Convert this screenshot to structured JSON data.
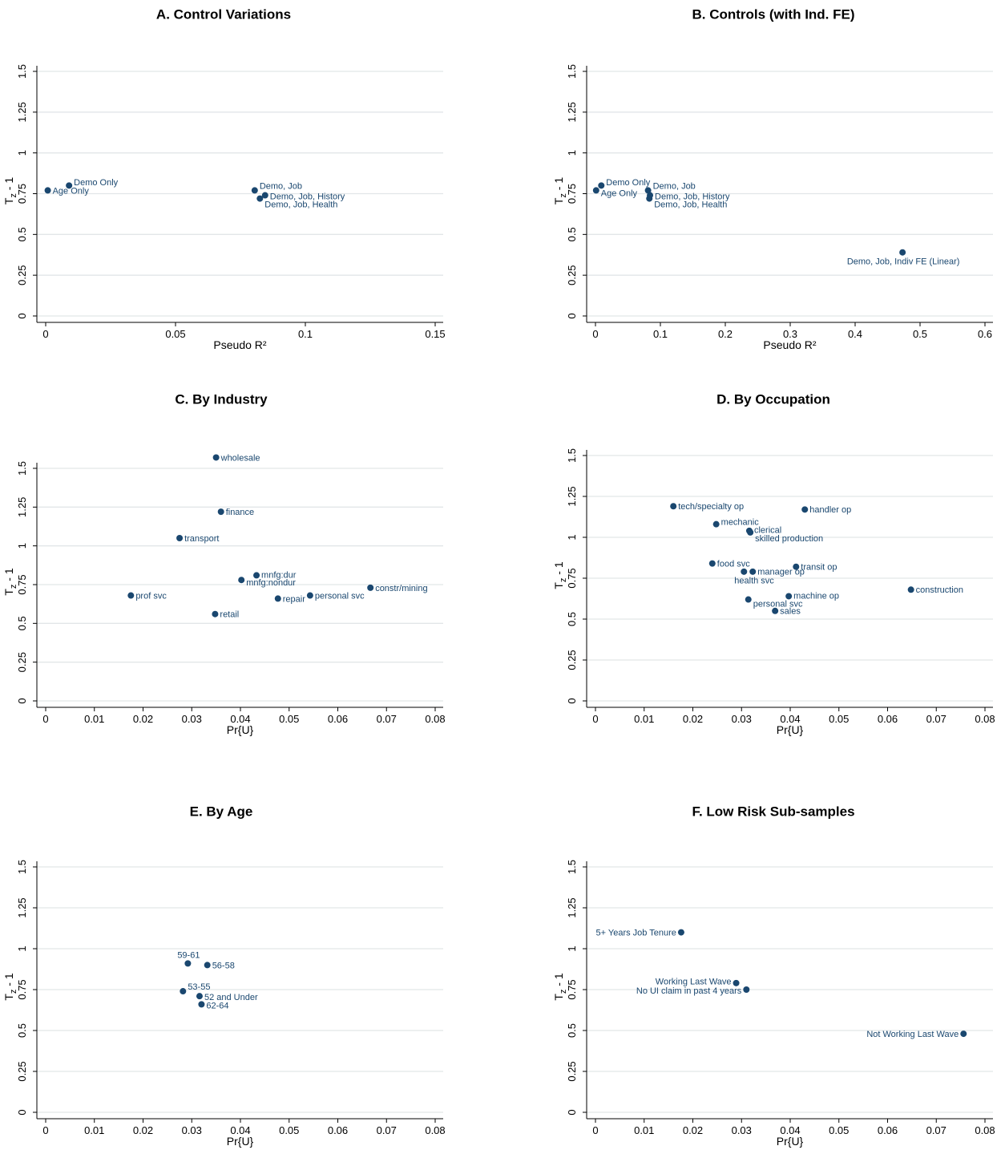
{
  "style": {
    "marker_color": "#1a476f",
    "label_color": "#1a476f",
    "grid_color": "#e2e6e8"
  },
  "chart_data": [
    {
      "type": "scatter",
      "title": "A. Control Variations",
      "xlabel": "Pseudo R²",
      "ylabel": "T_z - 1",
      "xlim": [
        0,
        0.15
      ],
      "ylim": [
        0,
        1.5
      ],
      "xticks": [
        "0",
        "0.05",
        "0.1",
        "0.15"
      ],
      "xtick_values": [
        0,
        0.05,
        0.1,
        0.15
      ],
      "yticks": [
        "0",
        "0.25",
        "0.5",
        "0.75",
        "1",
        "1.25",
        "1.5"
      ],
      "ytick_values": [
        0,
        0.25,
        0.5,
        0.75,
        1,
        1.25,
        1.5
      ],
      "grid": true,
      "points": [
        {
          "label": "Age Only",
          "x": 0.0008,
          "y": 0.77,
          "pos": "right",
          "dy": 1
        },
        {
          "label": "Demo Only",
          "x": 0.009,
          "y": 0.8,
          "pos": "right",
          "dy": -3
        },
        {
          "label": "Demo, Job",
          "x": 0.0805,
          "y": 0.77,
          "pos": "right",
          "dy": -5
        },
        {
          "label": "Demo, Job, History",
          "x": 0.0845,
          "y": 0.74,
          "pos": "right",
          "dy": 2
        },
        {
          "label": "Demo, Job, Health",
          "x": 0.0825,
          "y": 0.72,
          "pos": "right",
          "dy": 8
        }
      ]
    },
    {
      "type": "scatter",
      "title": "B. Controls (with Ind. FE)",
      "xlabel": "Pseudo R²",
      "ylabel": "T_z - 1",
      "xlim": [
        0,
        0.6
      ],
      "ylim": [
        0,
        1.5
      ],
      "xticks": [
        "0",
        "0.1",
        "0.2",
        "0.3",
        "0.4",
        "0.5",
        "0.6"
      ],
      "xtick_values": [
        0,
        0.1,
        0.2,
        0.3,
        0.4,
        0.5,
        0.6
      ],
      "yticks": [
        "0",
        "0.25",
        "0.5",
        "0.75",
        "1",
        "1.25",
        "1.5"
      ],
      "ytick_values": [
        0,
        0.25,
        0.5,
        0.75,
        1,
        1.25,
        1.5
      ],
      "grid": true,
      "points": [
        {
          "label": "Age Only",
          "x": 0.001,
          "y": 0.77,
          "pos": "right",
          "dy": 4
        },
        {
          "label": "Demo Only",
          "x": 0.009,
          "y": 0.8,
          "pos": "right",
          "dy": -3
        },
        {
          "label": "Demo, Job",
          "x": 0.081,
          "y": 0.77,
          "pos": "right",
          "dy": -5
        },
        {
          "label": "Demo, Job, History",
          "x": 0.084,
          "y": 0.74,
          "pos": "right",
          "dy": 2
        },
        {
          "label": "Demo, Job, Health",
          "x": 0.083,
          "y": 0.72,
          "pos": "right",
          "dy": 8
        },
        {
          "label": "Demo, Job, Indiv FE (Linear)",
          "x": 0.473,
          "y": 0.39,
          "pos": "below"
        }
      ]
    },
    {
      "type": "scatter",
      "title": "C. By Industry",
      "xlabel": "Pr{U}",
      "ylabel": "T_z - 1",
      "xlim": [
        0,
        0.08
      ],
      "ylim": [
        0,
        1.6
      ],
      "xticks": [
        "0",
        "0.01",
        "0.02",
        "0.03",
        "0.04",
        "0.05",
        "0.06",
        "0.07",
        "0.08"
      ],
      "xtick_values": [
        0,
        0.01,
        0.02,
        0.03,
        0.04,
        0.05,
        0.06,
        0.07,
        0.08
      ],
      "yticks": [
        "0",
        "0.25",
        "0.5",
        "0.75",
        "1",
        "1.25",
        "1.5"
      ],
      "ytick_values": [
        0,
        0.25,
        0.5,
        0.75,
        1,
        1.25,
        1.5
      ],
      "grid": true,
      "points": [
        {
          "label": "wholesale",
          "x": 0.035,
          "y": 1.57,
          "pos": "right",
          "dy": 1
        },
        {
          "label": "finance",
          "x": 0.036,
          "y": 1.22,
          "pos": "right",
          "dy": 1
        },
        {
          "label": "transport",
          "x": 0.0275,
          "y": 1.05,
          "pos": "right",
          "dy": 1
        },
        {
          "label": "mnfg:dur",
          "x": 0.0433,
          "y": 0.81,
          "pos": "right",
          "dy": 0
        },
        {
          "label": "mnfg:nondur",
          "x": 0.0402,
          "y": 0.78,
          "pos": "right",
          "dy": 4
        },
        {
          "label": "constr/mining",
          "x": 0.0667,
          "y": 0.73,
          "pos": "right",
          "dy": 1
        },
        {
          "label": "prof svc",
          "x": 0.0175,
          "y": 0.68,
          "pos": "right",
          "dy": 1
        },
        {
          "label": "personal svc",
          "x": 0.0543,
          "y": 0.68,
          "pos": "right",
          "dy": 1
        },
        {
          "label": "repair",
          "x": 0.0477,
          "y": 0.66,
          "pos": "right",
          "dy": 1
        },
        {
          "label": "retail",
          "x": 0.0348,
          "y": 0.56,
          "pos": "right",
          "dy": 1
        }
      ]
    },
    {
      "type": "scatter",
      "title": "D. By Occupation",
      "xlabel": "Pr{U}",
      "ylabel": "T_z - 1",
      "xlim": [
        0,
        0.08
      ],
      "ylim": [
        0,
        1.5
      ],
      "xticks": [
        "0",
        "0.01",
        "0.02",
        "0.03",
        "0.04",
        "0.05",
        "0.06",
        "0.07",
        "0.08"
      ],
      "xtick_values": [
        0,
        0.01,
        0.02,
        0.03,
        0.04,
        0.05,
        0.06,
        0.07,
        0.08
      ],
      "yticks": [
        "0",
        "0.25",
        "0.5",
        "0.75",
        "1",
        "1.25",
        "1.5"
      ],
      "ytick_values": [
        0,
        0.25,
        0.5,
        0.75,
        1,
        1.25,
        1.5
      ],
      "grid": true,
      "points": [
        {
          "label": "tech/specialty op",
          "x": 0.016,
          "y": 1.19,
          "pos": "right",
          "dy": 1
        },
        {
          "label": "handler op",
          "x": 0.043,
          "y": 1.17,
          "pos": "right",
          "dy": 1
        },
        {
          "label": "mechanic",
          "x": 0.0248,
          "y": 1.08,
          "pos": "right",
          "dy": -2
        },
        {
          "label": "clerical",
          "x": 0.0316,
          "y": 1.04,
          "pos": "right",
          "dy": 0
        },
        {
          "label": "skilled production",
          "x": 0.0318,
          "y": 1.03,
          "pos": "right",
          "dy": 8
        },
        {
          "label": "food svc",
          "x": 0.024,
          "y": 0.84,
          "pos": "right",
          "dy": 1
        },
        {
          "label": "transit op",
          "x": 0.0412,
          "y": 0.82,
          "pos": "right",
          "dy": 1
        },
        {
          "label": "manager op",
          "x": 0.0323,
          "y": 0.79,
          "pos": "right",
          "dy": 1
        },
        {
          "label": "health svc",
          "x": 0.0305,
          "y": 0.79,
          "pos": "below-left",
          "dy": 12
        },
        {
          "label": "construction",
          "x": 0.0648,
          "y": 0.68,
          "pos": "right",
          "dy": 1
        },
        {
          "label": "machine op",
          "x": 0.0397,
          "y": 0.64,
          "pos": "right",
          "dy": 0
        },
        {
          "label": "personal svc",
          "x": 0.0314,
          "y": 0.62,
          "pos": "right",
          "dy": 6
        },
        {
          "label": "sales",
          "x": 0.0369,
          "y": 0.55,
          "pos": "right",
          "dy": 1
        }
      ]
    },
    {
      "type": "scatter",
      "title": "E. By Age",
      "xlabel": "Pr{U}",
      "ylabel": "T_z - 1",
      "xlim": [
        0,
        0.08
      ],
      "ylim": [
        0,
        1.5
      ],
      "xticks": [
        "0",
        "0.01",
        "0.02",
        "0.03",
        "0.04",
        "0.05",
        "0.06",
        "0.07",
        "0.08"
      ],
      "xtick_values": [
        0,
        0.01,
        0.02,
        0.03,
        0.04,
        0.05,
        0.06,
        0.07,
        0.08
      ],
      "yticks": [
        "0",
        "0.25",
        "0.5",
        "0.75",
        "1",
        "1.25",
        "1.5"
      ],
      "ytick_values": [
        0,
        0.25,
        0.5,
        0.75,
        1,
        1.25,
        1.5
      ],
      "grid": true,
      "points": [
        {
          "label": "59-61",
          "x": 0.0292,
          "y": 0.91,
          "pos": "above"
        },
        {
          "label": "56-58",
          "x": 0.0332,
          "y": 0.9,
          "pos": "right",
          "dy": 1
        },
        {
          "label": "53-55",
          "x": 0.0282,
          "y": 0.74,
          "pos": "right",
          "dy": -5
        },
        {
          "label": "52 and Under",
          "x": 0.0316,
          "y": 0.71,
          "pos": "right",
          "dy": 2
        },
        {
          "label": "62-64",
          "x": 0.032,
          "y": 0.66,
          "pos": "right",
          "dy": 2
        }
      ]
    },
    {
      "type": "scatter",
      "title": "F. Low Risk Sub-samples",
      "xlabel": "Pr{U}",
      "ylabel": "T_z - 1",
      "xlim": [
        0,
        0.08
      ],
      "ylim": [
        0,
        1.5
      ],
      "xticks": [
        "0",
        "0.01",
        "0.02",
        "0.03",
        "0.04",
        "0.05",
        "0.06",
        "0.07",
        "0.08"
      ],
      "xtick_values": [
        0,
        0.01,
        0.02,
        0.03,
        0.04,
        0.05,
        0.06,
        0.07,
        0.08
      ],
      "yticks": [
        "0",
        "0.25",
        "0.5",
        "0.75",
        "1",
        "1.25",
        "1.5"
      ],
      "ytick_values": [
        0,
        0.25,
        0.5,
        0.75,
        1,
        1.25,
        1.5
      ],
      "grid": true,
      "points": [
        {
          "label": "5+ Years Job Tenure",
          "x": 0.0176,
          "y": 1.1,
          "pos": "left",
          "dy": 1
        },
        {
          "label": "Working Last Wave",
          "x": 0.0289,
          "y": 0.79,
          "pos": "left",
          "dy": -1
        },
        {
          "label": "No UI claim in past 4 years",
          "x": 0.031,
          "y": 0.75,
          "pos": "left",
          "dy": 2
        },
        {
          "label": "Not Working Last Wave",
          "x": 0.0756,
          "y": 0.48,
          "pos": "left",
          "dy": 1
        }
      ]
    }
  ]
}
